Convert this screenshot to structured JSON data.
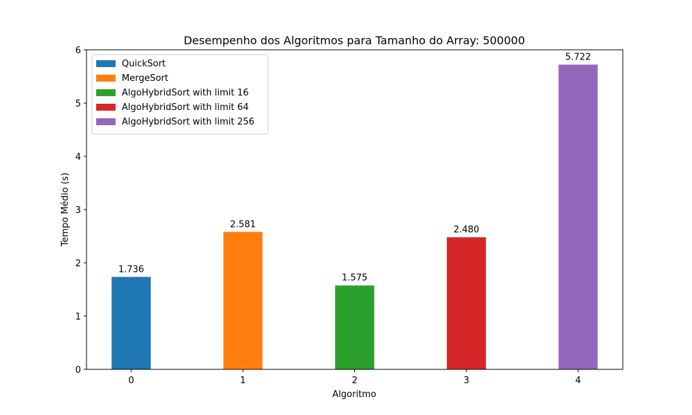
{
  "chart_data": {
    "type": "bar",
    "title": "Desempenho dos Algoritmos para Tamanho do Array: 500000",
    "xlabel": "Algoritmo",
    "ylabel": "Tempo Médio (s)",
    "ylim": [
      0,
      6
    ],
    "yticks": [
      0,
      1,
      2,
      3,
      4,
      5,
      6
    ],
    "categories": [
      "0",
      "1",
      "2",
      "3",
      "4"
    ],
    "grid": false,
    "legend_position": "top-left",
    "series": [
      {
        "name": "QuickSort",
        "x": 0,
        "value": 1.736,
        "label": "1.736",
        "color": "#1f77b4"
      },
      {
        "name": "MergeSort",
        "x": 1,
        "value": 2.581,
        "label": "2.581",
        "color": "#ff7f0e"
      },
      {
        "name": "AlgoHybridSort with limit 16",
        "x": 2,
        "value": 1.575,
        "label": "1.575",
        "color": "#2ca02c"
      },
      {
        "name": "AlgoHybridSort with limit 64",
        "x": 3,
        "value": 2.48,
        "label": "2.480",
        "color": "#d62728"
      },
      {
        "name": "AlgoHybridSort with limit 256",
        "x": 4,
        "value": 5.722,
        "label": "5.722",
        "color": "#9467bd"
      }
    ]
  }
}
